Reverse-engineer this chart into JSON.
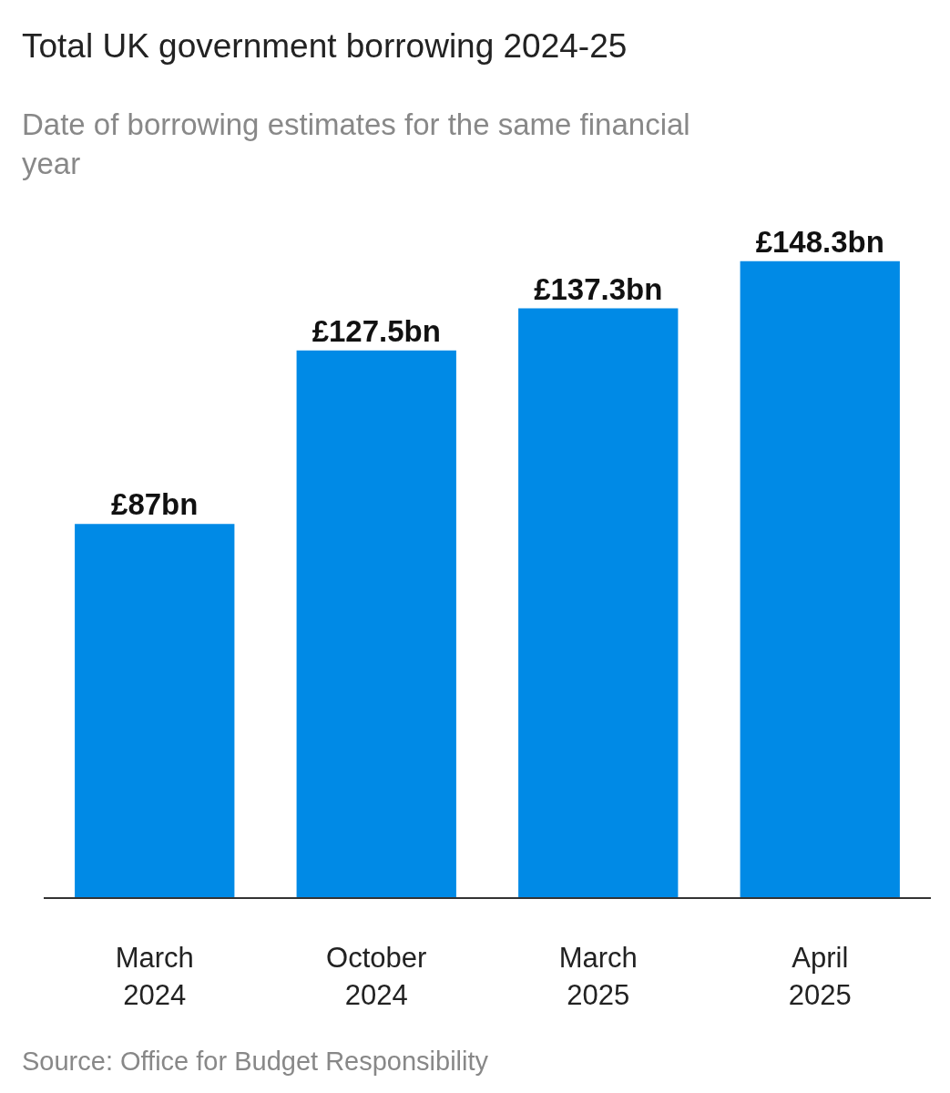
{
  "chart_data": {
    "type": "bar",
    "title": "Total UK government borrowing 2024-25",
    "subtitle": "Date of borrowing estimates for the same financial year",
    "categories": [
      "March 2024",
      "October 2024",
      "March 2025",
      "April 2025"
    ],
    "values": [
      87,
      127.5,
      137.3,
      148.3
    ],
    "value_labels": [
      "£87bn",
      "£127.5bn",
      "£137.3bn",
      "£148.3bn"
    ],
    "color": "#008ae6",
    "annotations": [
      "Source: Office for Budget Responsibility"
    ]
  }
}
